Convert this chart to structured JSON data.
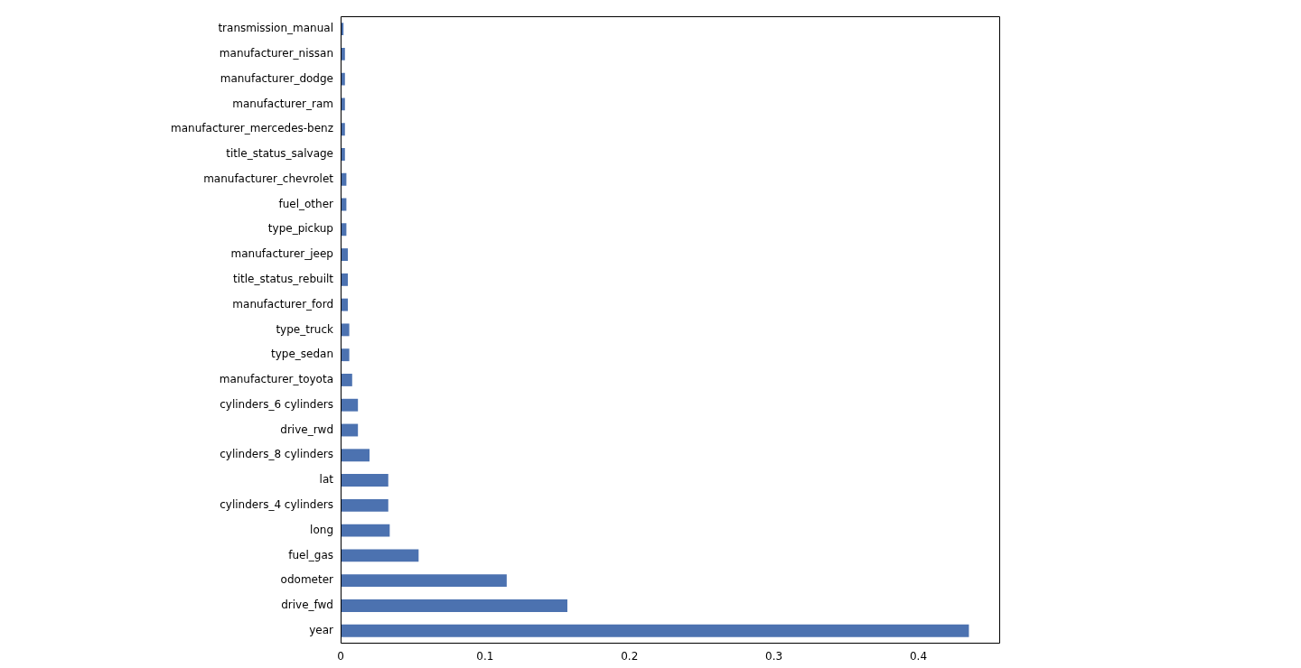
{
  "chart_data": {
    "type": "bar",
    "orientation": "horizontal",
    "color": "#4c72b0",
    "categories": [
      "transmission_manual",
      "manufacturer_nissan",
      "manufacturer_dodge",
      "manufacturer_ram",
      "manufacturer_mercedes-benz",
      "title_status_salvage",
      "manufacturer_chevrolet",
      "fuel_other",
      "type_pickup",
      "manufacturer_jeep",
      "title_status_rebuilt",
      "manufacturer_ford",
      "type_truck",
      "type_sedan",
      "manufacturer_toyota",
      "cylinders_6 cylinders",
      "drive_rwd",
      "cylinders_8 cylinders",
      "lat",
      "cylinders_4 cylinders",
      "long",
      "fuel_gas",
      "odometer",
      "drive_fwd",
      "year"
    ],
    "values": [
      0.002,
      0.003,
      0.003,
      0.003,
      0.003,
      0.003,
      0.004,
      0.004,
      0.004,
      0.005,
      0.005,
      0.005,
      0.006,
      0.006,
      0.008,
      0.012,
      0.012,
      0.02,
      0.033,
      0.033,
      0.034,
      0.054,
      0.115,
      0.157,
      0.435
    ],
    "xlim": [
      0,
      0.456
    ],
    "xticks": [
      0,
      0.1,
      0.2,
      0.3,
      0.4
    ],
    "grid": false,
    "legend": false
  }
}
